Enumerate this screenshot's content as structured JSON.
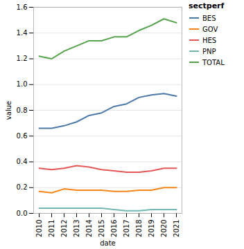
{
  "chart_data": {
    "type": "line",
    "x_label": "date",
    "y_label": "value",
    "legend_title": "sectperf",
    "x": [
      "2010",
      "2011",
      "2012",
      "2013",
      "2014",
      "2015",
      "2016",
      "2017",
      "2018",
      "2019",
      "2020",
      "2021"
    ],
    "series": [
      {
        "name": "BES",
        "color": "#4c78a8",
        "values": [
          0.66,
          0.66,
          0.68,
          0.71,
          0.76,
          0.78,
          0.83,
          0.85,
          0.9,
          0.92,
          0.93,
          0.91
        ]
      },
      {
        "name": "GOV",
        "color": "#f58518",
        "values": [
          0.17,
          0.16,
          0.19,
          0.18,
          0.18,
          0.18,
          0.17,
          0.17,
          0.18,
          0.18,
          0.2,
          0.2
        ]
      },
      {
        "name": "HES",
        "color": "#e45756",
        "values": [
          0.35,
          0.34,
          0.35,
          0.37,
          0.36,
          0.34,
          0.33,
          0.32,
          0.32,
          0.33,
          0.35,
          0.35
        ]
      },
      {
        "name": "PNP",
        "color": "#72b7b2",
        "values": [
          0.04,
          0.04,
          0.04,
          0.04,
          0.04,
          0.04,
          0.03,
          0.02,
          0.02,
          0.03,
          0.03,
          0.03
        ]
      },
      {
        "name": "TOTAL",
        "color": "#54a24b",
        "values": [
          1.22,
          1.2,
          1.26,
          1.3,
          1.34,
          1.34,
          1.37,
          1.37,
          1.42,
          1.46,
          1.51,
          1.48
        ]
      }
    ],
    "ylim": [
      0,
      1.6
    ],
    "yticks": [
      {
        "value": 0,
        "label": "0.0"
      },
      {
        "value": 0.2,
        "label": "0.2"
      },
      {
        "value": 0.4,
        "label": "0.4"
      },
      {
        "value": 0.6,
        "label": "0.6"
      },
      {
        "value": 0.8,
        "label": "0.8"
      },
      {
        "value": 1,
        "label": "1.0"
      },
      {
        "value": 1.2,
        "label": "1.2"
      },
      {
        "value": 1.4,
        "label": "1.4"
      },
      {
        "value": 1.6,
        "label": "1.6"
      }
    ],
    "grid": true,
    "legend": "top-right"
  }
}
